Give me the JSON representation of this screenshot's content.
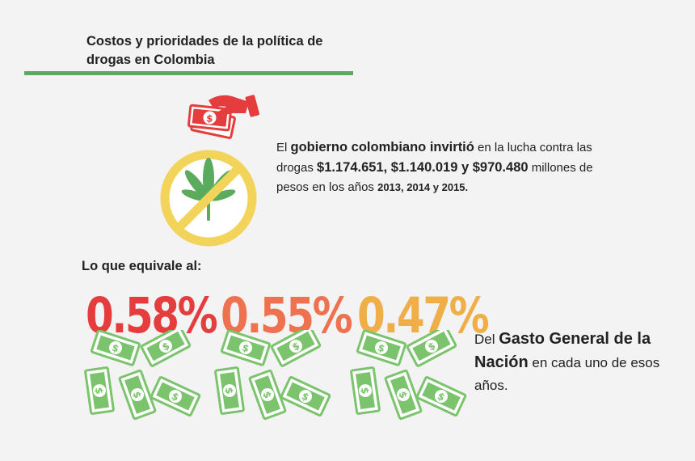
{
  "title": "Costos y prioridades de la política de drogas en Colombia",
  "intro": {
    "p1": "El ",
    "b1": "gobierno colombiano invirtió",
    "p2": " en la lucha contra las drogas ",
    "b2": "$1.174.651, $1.140.019 y $970.480",
    "p3": " millones de pesos en los años ",
    "y1": "2013, 2014 y 2015."
  },
  "equivalent_label": "Lo que equivale al:",
  "percentages": [
    {
      "value": "0.58%",
      "color": "#e53d3d"
    },
    {
      "value": "0.55%",
      "color": "#ef7250"
    },
    {
      "value": "0.47%",
      "color": "#efae47"
    }
  ],
  "outro": {
    "p1": "Del ",
    "b1": "Gasto General de la Nación",
    "p2": " en cada uno de esos años."
  },
  "icons": {
    "hand": "hand-giving-money-icon",
    "ban": "no-marijuana-icon",
    "bills": "money-bills-icon"
  },
  "colors": {
    "accent_green": "#5aab5e",
    "bill_green": "#7cc36e",
    "hand_red": "#e53d3d",
    "ban_yellow": "#f2d45a"
  }
}
